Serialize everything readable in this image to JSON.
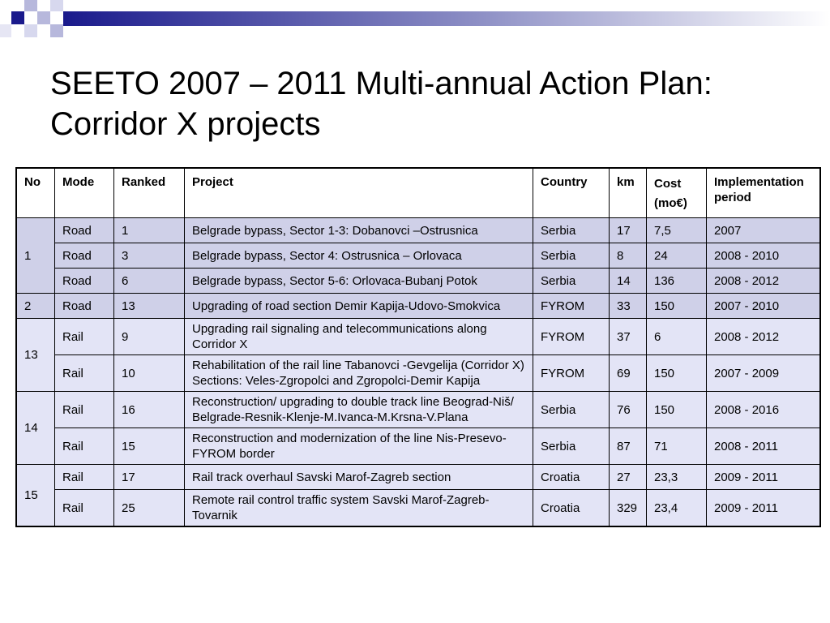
{
  "slide": {
    "title_line1": "SEETO 2007 – 2011 Multi-annual Action Plan:",
    "title_line2": "Corridor X projects"
  },
  "colors": {
    "deco_dark": "#1a1a8c",
    "deco_light": "#b7b8dc",
    "row_shade_a": "#cfd0e8",
    "row_shade_b": "#e3e4f6"
  },
  "table": {
    "headers": {
      "no": "No",
      "mode": "Mode",
      "ranked": "Ranked",
      "project": "Project",
      "country": "Country",
      "km": "km",
      "cost_line1": "Cost",
      "cost_line2": "(mo€)",
      "implementation": "Implementation period"
    },
    "groups": [
      {
        "no": "1",
        "rows": [
          {
            "mode": "Road",
            "ranked": "1",
            "project": "Belgrade bypass, Sector 1-3: Dobanovci –Ostrusnica",
            "country": "Serbia",
            "km": "17",
            "cost": "7,5",
            "period": "2007"
          },
          {
            "mode": "Road",
            "ranked": "3",
            "project": "Belgrade bypass, Sector 4: Ostrusnica – Orlovaca",
            "country": "Serbia",
            "km": "8",
            "cost": "24",
            "period": "2008 - 2010"
          },
          {
            "mode": "Road",
            "ranked": "6",
            "project": "Belgrade bypass, Sector 5-6: Orlovaca-Bubanj Potok",
            "country": "Serbia",
            "km": "14",
            "cost": "136",
            "period": "2008 - 2012"
          }
        ]
      },
      {
        "no": "2",
        "rows": [
          {
            "mode": "Road",
            "ranked": "13",
            "project": "Upgrading of road section Demir Kapija-Udovo-Smokvica",
            "country": "FYROM",
            "km": "33",
            "cost": "150",
            "period": "2007 - 2010"
          }
        ]
      },
      {
        "no": "13",
        "rows": [
          {
            "mode": "Rail",
            "ranked": "9",
            "project": "Upgrading rail signaling and telecommunications along Corridor X",
            "country": "FYROM",
            "km": "37",
            "cost": "6",
            "period": "2008 - 2012"
          },
          {
            "mode": "Rail",
            "ranked": "10",
            "project": "Rehabilitation of the rail line Tabanovci -Gevgelija (Corridor X) Sections: Veles-Zgropolci and Zgropolci-Demir Kapija",
            "country": "FYROM",
            "km": "69",
            "cost": "150",
            "period": "2007 - 2009"
          }
        ]
      },
      {
        "no": "14",
        "rows": [
          {
            "mode": "Rail",
            "ranked": "16",
            "project": "Reconstruction/ upgrading to double track line Beograd-Niš/ Belgrade-Resnik-Klenje-M.Ivanca-M.Krsna-V.Plana",
            "country": "Serbia",
            "km": "76",
            "cost": "150",
            "period": "2008 - 2016"
          },
          {
            "mode": "Rail",
            "ranked": "15",
            "project": "Reconstruction and modernization of the line Nis-Presevo-FYROM border",
            "country": "Serbia",
            "km": "87",
            "cost": "71",
            "period": "2008 - 2011"
          }
        ]
      },
      {
        "no": "15",
        "rows": [
          {
            "mode": "Rail",
            "ranked": "17",
            "project": "Rail track overhaul Savski Marof-Zagreb section",
            "country": "Croatia",
            "km": "27",
            "cost": "23,3",
            "period": "2009 - 2011"
          },
          {
            "mode": "Rail",
            "ranked": "25",
            "project": "Remote rail control traffic system Savski Marof-Zagreb-Tovarnik",
            "country": "Croatia",
            "km": "329",
            "cost": "23,4",
            "period": "2009 - 2011"
          }
        ]
      }
    ]
  }
}
